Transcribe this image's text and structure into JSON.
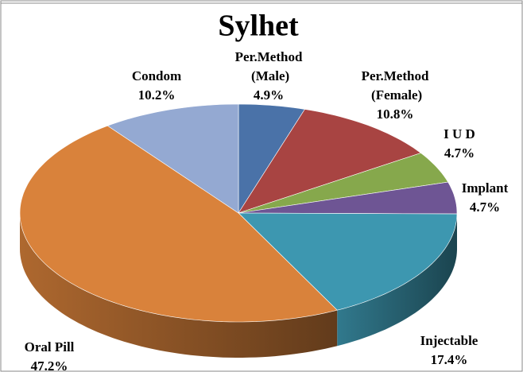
{
  "chart_data": {
    "type": "pie",
    "title": "Sylhet",
    "categories": [
      "Per.Method (Male)",
      "Per.Method (Female)",
      "I U D",
      "Implant",
      "Injectable",
      "Oral Pill",
      "Condom"
    ],
    "values": [
      4.9,
      10.8,
      4.7,
      4.7,
      17.4,
      47.2,
      10.2
    ],
    "value_labels": [
      "4.9%",
      "10.8%",
      "4.7%",
      "4.7%",
      "17.4%",
      "47.2%",
      "10.2%"
    ],
    "colors": [
      "#4a72a8",
      "#a84442",
      "#86a84c",
      "#6e5594",
      "#3d97b0",
      "#d9823b",
      "#94a9d2"
    ],
    "three_d": true
  }
}
